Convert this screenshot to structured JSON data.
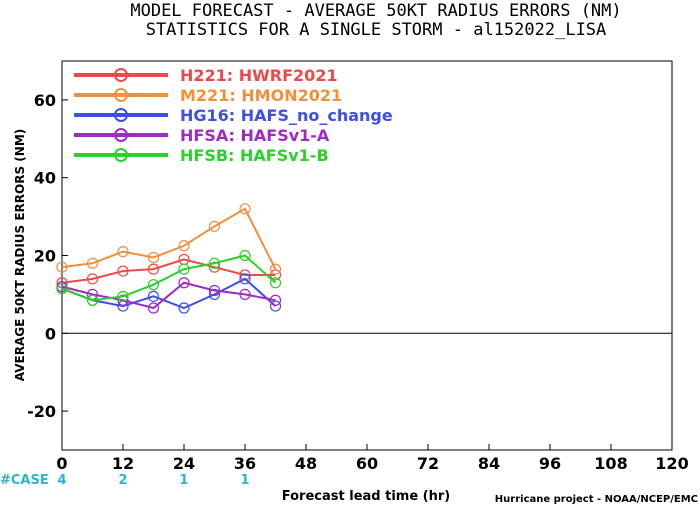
{
  "chart_data": {
    "type": "line",
    "title": "MODEL FORECAST - AVERAGE 50KT RADIUS ERRORS (NM)",
    "subtitle": "STATISTICS FOR A SINGLE STORM - al152022_LISA",
    "xlabel": "Forecast lead time (hr)",
    "ylabel": "AVERAGE 50KT RADIUS ERRORS (NM)",
    "xlim": [
      0,
      120
    ],
    "ylim": [
      -30,
      70
    ],
    "xticks": [
      0,
      12,
      24,
      36,
      48,
      60,
      72,
      84,
      96,
      108,
      120
    ],
    "yticks": [
      -20,
      0,
      20,
      40,
      60
    ],
    "legend_position": "top-left",
    "credit": "Hurricane project - NOAA/NCEP/EMC",
    "case_label": "#CASE",
    "cases": [
      {
        "x": 0,
        "count": "4"
      },
      {
        "x": 12,
        "count": "2"
      },
      {
        "x": 24,
        "count": "1"
      },
      {
        "x": 36,
        "count": "1"
      }
    ],
    "series": [
      {
        "name": "H221: HWRF2021",
        "color": "#f04848",
        "x": [
          0,
          6,
          12,
          18,
          24,
          30,
          36,
          42
        ],
        "y": [
          13,
          14,
          16,
          16.5,
          19,
          17,
          15,
          15
        ]
      },
      {
        "name": "M221: HMON2021",
        "color": "#f0903a",
        "x": [
          0,
          6,
          12,
          18,
          24,
          30,
          36,
          42
        ],
        "y": [
          17,
          18,
          21,
          19.5,
          22.5,
          27.5,
          32,
          16.5
        ]
      },
      {
        "name": "HG16: HAFS_no_change",
        "color": "#3c50e8",
        "x": [
          0,
          6,
          12,
          18,
          24,
          30,
          36,
          42
        ],
        "y": [
          11.5,
          8.5,
          7,
          9.5,
          6.5,
          10,
          14,
          7
        ]
      },
      {
        "name": "HFSA: HAFSv1-A",
        "color": "#a428c8",
        "x": [
          0,
          6,
          12,
          18,
          24,
          30,
          36,
          42
        ],
        "y": [
          12,
          10,
          8.5,
          6.5,
          13,
          11,
          10,
          8.5
        ]
      },
      {
        "name": "HFSB: HAFSv1-B",
        "color": "#28d228",
        "x": [
          0,
          6,
          12,
          18,
          24,
          30,
          36,
          42
        ],
        "y": [
          11.5,
          8.5,
          9.5,
          12.5,
          16.5,
          18,
          20,
          13
        ]
      }
    ]
  }
}
